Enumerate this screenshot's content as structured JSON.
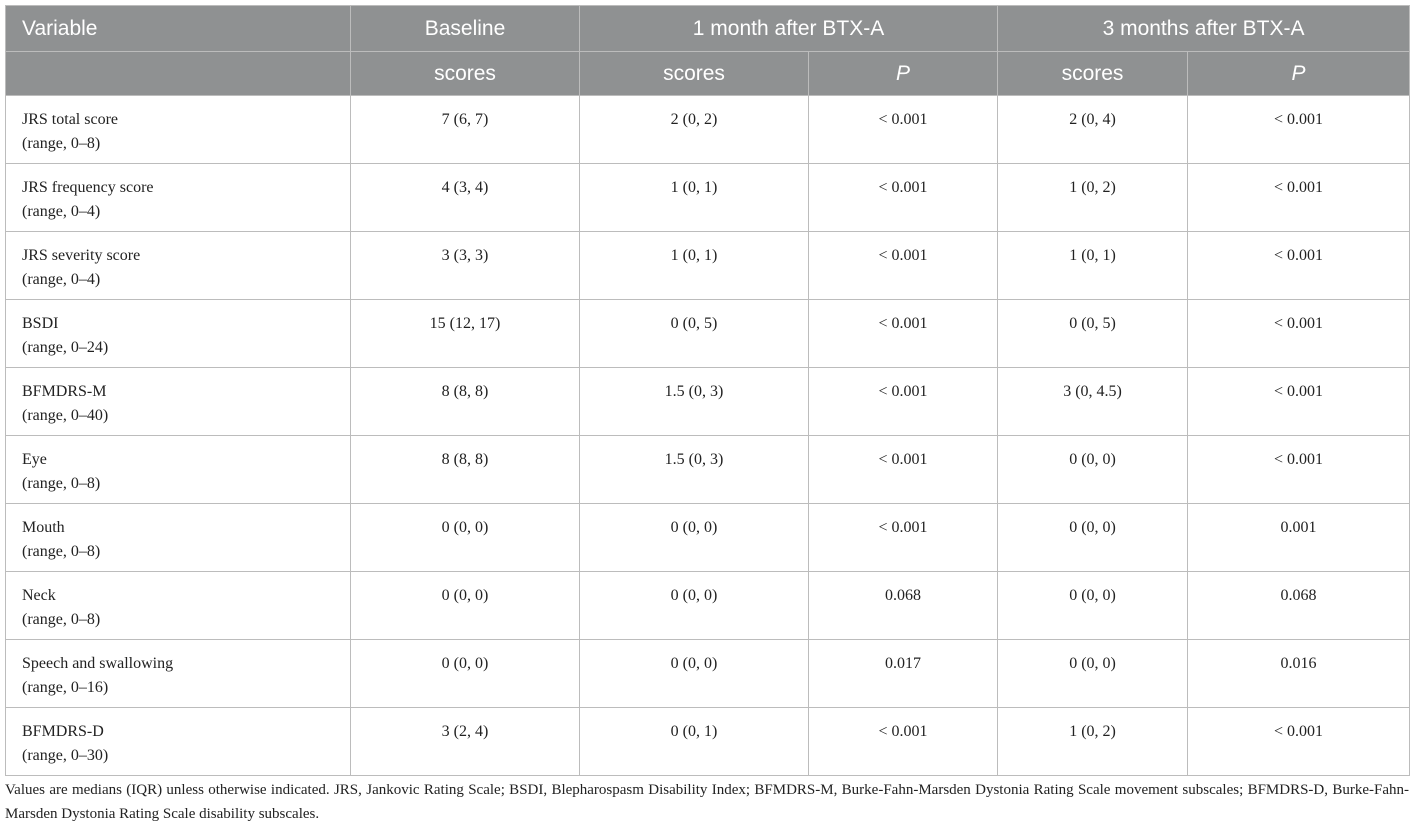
{
  "table": {
    "header_row1": {
      "variable": "Variable",
      "baseline": "Baseline",
      "month1": "1 month after BTX-A",
      "month3": "3 months after BTX-A"
    },
    "header_row2": {
      "baseline_scores": "scores",
      "month1_scores": "scores",
      "month1_p": "P",
      "month3_scores": "scores",
      "month3_p": "P"
    },
    "rows": [
      {
        "name": "JRS total score",
        "range": "(range, 0–8)",
        "baseline": "7 (6, 7)",
        "m1_score": "2 (0, 2)",
        "m1_p": "< 0.001",
        "m3_score": "2 (0, 4)",
        "m3_p": "< 0.001"
      },
      {
        "name": "JRS frequency score",
        "range": "(range, 0–4)",
        "baseline": "4 (3, 4)",
        "m1_score": "1 (0, 1)",
        "m1_p": "< 0.001",
        "m3_score": "1 (0, 2)",
        "m3_p": "< 0.001"
      },
      {
        "name": "JRS severity score",
        "range": "(range, 0–4)",
        "baseline": "3 (3, 3)",
        "m1_score": "1 (0, 1)",
        "m1_p": "< 0.001",
        "m3_score": "1 (0, 1)",
        "m3_p": "< 0.001"
      },
      {
        "name": "BSDI",
        "range": "(range, 0–24)",
        "baseline": "15 (12, 17)",
        "m1_score": "0 (0, 5)",
        "m1_p": "< 0.001",
        "m3_score": "0 (0, 5)",
        "m3_p": "< 0.001"
      },
      {
        "name": "BFMDRS-M",
        "range": "(range, 0–40)",
        "baseline": "8 (8, 8)",
        "m1_score": "1.5 (0, 3)",
        "m1_p": "< 0.001",
        "m3_score": "3 (0, 4.5)",
        "m3_p": "< 0.001"
      },
      {
        "name": "Eye",
        "range": "(range, 0–8)",
        "baseline": "8 (8, 8)",
        "m1_score": "1.5 (0, 3)",
        "m1_p": "< 0.001",
        "m3_score": "0 (0, 0)",
        "m3_p": "< 0.001"
      },
      {
        "name": "Mouth",
        "range": "(range, 0–8)",
        "baseline": "0 (0, 0)",
        "m1_score": "0 (0, 0)",
        "m1_p": "< 0.001",
        "m3_score": "0 (0, 0)",
        "m3_p": "0.001"
      },
      {
        "name": "Neck",
        "range": "(range, 0–8)",
        "baseline": "0 (0, 0)",
        "m1_score": "0 (0, 0)",
        "m1_p": "0.068",
        "m3_score": "0 (0, 0)",
        "m3_p": "0.068"
      },
      {
        "name": "Speech and swallowing",
        "range": "(range, 0–16)",
        "baseline": "0 (0, 0)",
        "m1_score": "0 (0, 0)",
        "m1_p": "0.017",
        "m3_score": "0 (0, 0)",
        "m3_p": "0.016"
      },
      {
        "name": "BFMDRS-D",
        "range": "(range, 0–30)",
        "baseline": "3 (2, 4)",
        "m1_score": "0 (0, 1)",
        "m1_p": "< 0.001",
        "m3_score": "1 (0, 2)",
        "m3_p": "< 0.001"
      }
    ]
  },
  "footnote": "Values are medians (IQR) unless otherwise indicated. JRS, Jankovic Rating Scale; BSDI, Blepharospasm Disability Index; BFMDRS-M, Burke-Fahn-Marsden Dystonia Rating Scale movement subscales; BFMDRS-D, Burke-Fahn-Marsden Dystonia Rating Scale disability subscales.",
  "colors": {
    "header_bg": "#8f9192",
    "header_text": "#ffffff",
    "border": "#bcbcbc",
    "body_text": "#222222"
  }
}
